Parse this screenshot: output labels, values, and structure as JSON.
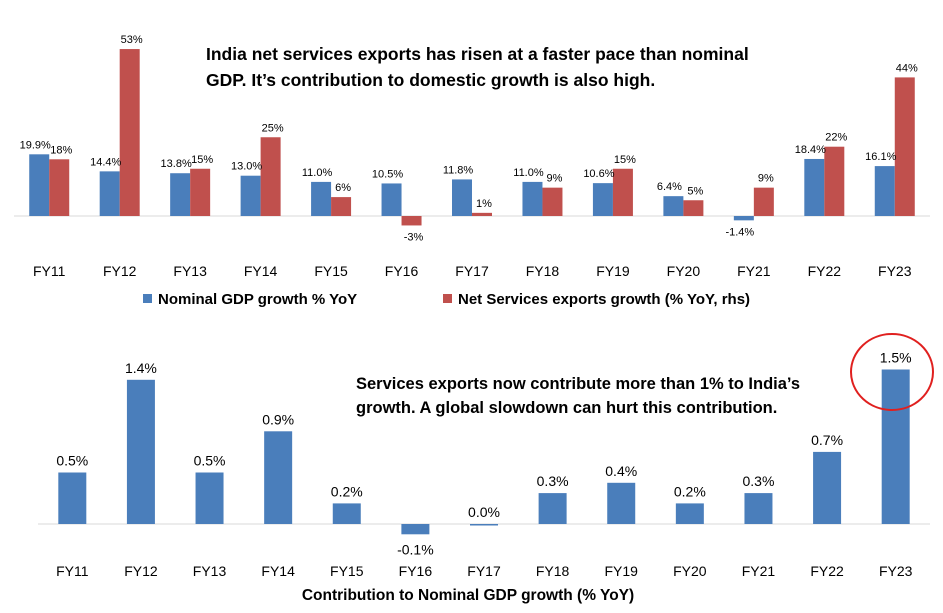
{
  "chart_data": [
    {
      "type": "bar",
      "title": "India net services exports has risen at a faster pace than nominal GDP. It’s contribution to domestic growth is also high.",
      "title_lines": [
        "India net services exports has risen at a faster pace than nominal",
        "GDP. It’s contribution to domestic growth is also high."
      ],
      "categories": [
        "FY11",
        "FY12",
        "FY13",
        "FY14",
        "FY15",
        "FY16",
        "FY17",
        "FY18",
        "FY19",
        "FY20",
        "FY21",
        "FY22",
        "FY23"
      ],
      "series": [
        {
          "name": "Nominal GDP growth % YoY",
          "color": "#4a7ebb",
          "axis": "left",
          "values": [
            19.9,
            14.4,
            13.8,
            13.0,
            11.0,
            10.5,
            11.8,
            11.0,
            10.6,
            6.4,
            -1.4,
            18.4,
            16.1
          ],
          "labels": [
            "19.9%",
            "14.4%",
            "13.8%",
            "13.0%",
            "11.0%",
            "10.5%",
            "11.8%",
            "11.0%",
            "10.6%",
            "6.4%",
            "-1.4%",
            "18.4%",
            "16.1%"
          ]
        },
        {
          "name": "Net Services exports growth (% YoY, rhs)",
          "color": "#c0504d",
          "axis": "right",
          "values": [
            18,
            53,
            15,
            25,
            6,
            -3,
            1,
            9,
            15,
            5,
            9,
            22,
            44
          ],
          "labels": [
            "18%",
            "53%",
            "15%",
            "25%",
            "6%",
            "-3%",
            "1%",
            "9%",
            "15%",
            "5%",
            "9%",
            "22%",
            "44%"
          ]
        }
      ],
      "legend_position": "bottom"
    },
    {
      "type": "bar",
      "xlabel": "Contribution to Nominal GDP growth (% YoY)",
      "annotation_lines": [
        "Services exports now contribute more than 1% to India’s",
        "growth. A global slowdown can hurt this contribution."
      ],
      "categories": [
        "FY11",
        "FY12",
        "FY13",
        "FY14",
        "FY15",
        "FY16",
        "FY17",
        "FY18",
        "FY19",
        "FY20",
        "FY21",
        "FY22",
        "FY23"
      ],
      "series": [
        {
          "name": "Contribution to Nominal GDP growth",
          "color": "#4a7ebb",
          "values": [
            0.5,
            1.4,
            0.5,
            0.9,
            0.2,
            -0.1,
            0.0,
            0.3,
            0.4,
            0.2,
            0.3,
            0.7,
            1.5
          ],
          "labels": [
            "0.5%",
            "1.4%",
            "0.5%",
            "0.9%",
            "0.2%",
            "-0.1%",
            "0.0%",
            "0.3%",
            "0.4%",
            "0.2%",
            "0.3%",
            "0.7%",
            "1.5%"
          ]
        }
      ],
      "highlight": {
        "category": "FY23",
        "shape": "circle",
        "color": "#e0201f"
      }
    }
  ]
}
